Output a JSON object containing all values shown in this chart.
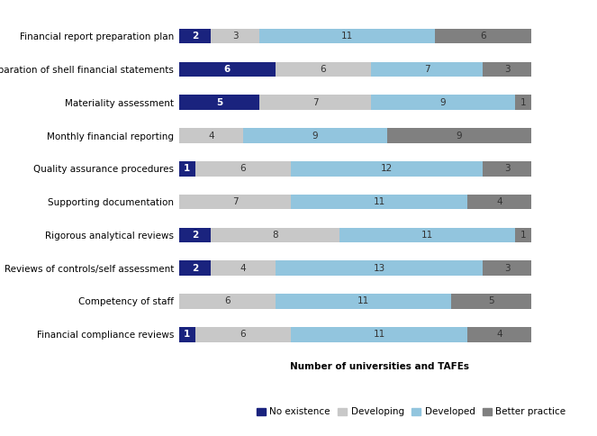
{
  "categories": [
    "Financial report preparation plan",
    "Preparation of shell financial statements",
    "Materiality assessment",
    "Monthly financial reporting",
    "Quality assurance procedures",
    "Supporting documentation",
    "Rigorous analytical reviews",
    "Reviews of controls/self assessment",
    "Competency of staff",
    "Financial compliance reviews"
  ],
  "series": {
    "No existence": [
      2,
      6,
      5,
      0,
      1,
      0,
      2,
      2,
      0,
      1
    ],
    "Developing": [
      3,
      6,
      7,
      4,
      6,
      7,
      8,
      4,
      6,
      6
    ],
    "Developed": [
      11,
      7,
      9,
      9,
      12,
      11,
      11,
      13,
      11,
      11
    ],
    "Better practice": [
      6,
      3,
      1,
      9,
      3,
      4,
      1,
      3,
      5,
      4
    ]
  },
  "colors": {
    "No existence": "#1a237e",
    "Developing": "#c8c8c8",
    "Developed": "#92c5de",
    "Better practice": "#808080"
  },
  "xlabel": "Number of universities and TAFEs",
  "legend_labels": [
    "No existence",
    "Developing",
    "Developed",
    "Better practice"
  ],
  "bar_height": 0.45,
  "xlim": [
    0,
    25
  ],
  "text_color_dark": "#ffffff",
  "text_color_light": "#333333",
  "fontsize_bar_labels": 7.5,
  "fontsize_yticks": 7.5,
  "fontsize_xlabel": 7.5,
  "fontsize_legend": 7.5
}
